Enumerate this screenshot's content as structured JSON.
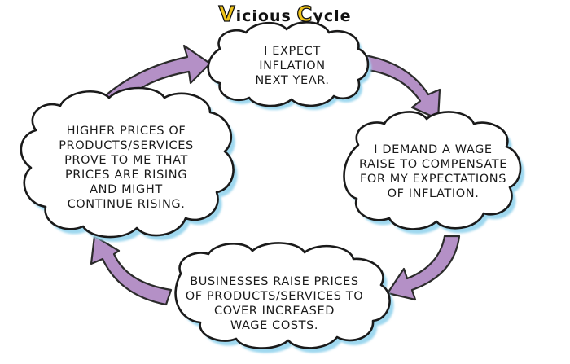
{
  "title": {
    "word1_initial": "V",
    "word1_rest": "icious",
    "word2_initial": "C",
    "word2_rest": "ycle"
  },
  "steps": [
    {
      "id": "top",
      "lines": [
        "I expect",
        "inflation",
        "next year."
      ]
    },
    {
      "id": "right",
      "lines": [
        "I demand a wage",
        "raise to compensate",
        "for my expectations",
        "of inflation."
      ]
    },
    {
      "id": "bottom",
      "lines": [
        "Businesses raise prices",
        "of products/services to",
        "cover increased",
        "wage costs."
      ]
    },
    {
      "id": "left",
      "lines": [
        "Higher prices of",
        "products/services",
        "prove to me that",
        "prices are rising",
        "and might",
        "continue rising."
      ]
    }
  ],
  "colors": {
    "arrow_fill": "#b490c6",
    "arrow_stroke": "#2b2b2b",
    "cloud_shadow": "#9fd8ef",
    "cloud_fill": "#ffffff",
    "cloud_stroke": "#1a1a1a",
    "title_caps": "#f0c419"
  }
}
